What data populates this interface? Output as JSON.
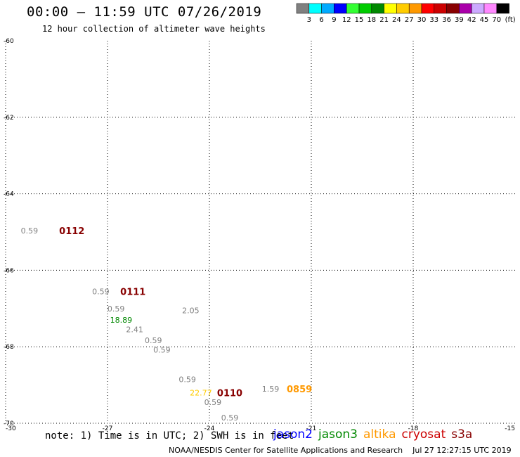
{
  "header": {
    "title": "00:00 – 11:59 UTC 07/26/2019",
    "subtitle": "12 hour collection of altimeter wave heights"
  },
  "colorbar": {
    "bins": [
      {
        "label": "3",
        "color": "#808080"
      },
      {
        "label": "6",
        "color": "#00ffff"
      },
      {
        "label": "9",
        "color": "#00aaff"
      },
      {
        "label": "12",
        "color": "#0000ff"
      },
      {
        "label": "15",
        "color": "#33ff33"
      },
      {
        "label": "18",
        "color": "#00cc00"
      },
      {
        "label": "21",
        "color": "#008800"
      },
      {
        "label": "24",
        "color": "#ffff00"
      },
      {
        "label": "27",
        "color": "#ffcc00"
      },
      {
        "label": "30",
        "color": "#ff9900"
      },
      {
        "label": "33",
        "color": "#ff0000"
      },
      {
        "label": "36",
        "color": "#cc0000"
      },
      {
        "label": "39",
        "color": "#880000"
      },
      {
        "label": "42",
        "color": "#aa00aa"
      },
      {
        "label": "45",
        "color": "#ccaaff"
      },
      {
        "label": "70",
        "color": "#ff88ff"
      },
      {
        "label": "",
        "color": "#000000"
      }
    ],
    "unit": "(ft)"
  },
  "chart_data": {
    "type": "scatter",
    "title": "00:00 – 11:59 UTC 07/26/2019",
    "subtitle": "12 hour collection of altimeter wave heights",
    "xlabel": "",
    "ylabel": "",
    "xlim": [
      -30,
      -15
    ],
    "ylim": [
      -70,
      -60
    ],
    "x_ticks": [
      "-30",
      "-27",
      "-24",
      "-21",
      "-18",
      "-15"
    ],
    "y_ticks": [
      "-60",
      "-62",
      "-64",
      "-66",
      "-68",
      "-70"
    ],
    "grid": true,
    "wave_heights": [
      {
        "x": -29.3,
        "y": -64.96,
        "label": "0.59",
        "color": "#808080"
      },
      {
        "x": -27.2,
        "y": -66.55,
        "label": "0.59",
        "color": "#808080"
      },
      {
        "x": -26.75,
        "y": -67.0,
        "label": "0.59",
        "color": "#808080"
      },
      {
        "x": -26.6,
        "y": -67.3,
        "label": "18.89",
        "color": "#008800"
      },
      {
        "x": -26.2,
        "y": -67.55,
        "label": "2.41",
        "color": "#808080"
      },
      {
        "x": -25.65,
        "y": -67.83,
        "label": "0.59",
        "color": "#808080"
      },
      {
        "x": -25.4,
        "y": -68.08,
        "label": "0.59",
        "color": "#808080"
      },
      {
        "x": -24.55,
        "y": -67.05,
        "label": "2.05",
        "color": "#808080"
      },
      {
        "x": -24.65,
        "y": -68.85,
        "label": "0.59",
        "color": "#808080"
      },
      {
        "x": -24.25,
        "y": -69.2,
        "label": "22.77",
        "color": "#ffcc00"
      },
      {
        "x": -23.9,
        "y": -69.45,
        "label": "0.59",
        "color": "#808080"
      },
      {
        "x": -23.4,
        "y": -69.85,
        "label": "0.59",
        "color": "#808080"
      },
      {
        "x": -22.2,
        "y": -69.1,
        "label": "1.59",
        "color": "#808080"
      }
    ],
    "time_labels": [
      {
        "x": -28.05,
        "y": -64.96,
        "label": "0112",
        "color": "#880000"
      },
      {
        "x": -26.25,
        "y": -66.55,
        "label": "0111",
        "color": "#880000"
      },
      {
        "x": -23.4,
        "y": -69.2,
        "label": "0110",
        "color": "#880000"
      },
      {
        "x": -21.35,
        "y": -69.1,
        "label": "0859",
        "color": "#ff9900"
      }
    ]
  },
  "footer": {
    "note": "note: 1) Time is in UTC; 2) SWH is in feet",
    "satellites": [
      {
        "name": "jason2",
        "color": "#0000ff"
      },
      {
        "name": "jason3",
        "color": "#008800"
      },
      {
        "name": "altika",
        "color": "#ff9900"
      },
      {
        "name": "cryosat",
        "color": "#cc0000"
      },
      {
        "name": "s3a",
        "color": "#880000"
      }
    ],
    "credit": "NOAA/NESDIS Center for Satellite Applications and Research    Jul 27 12:27:15 UTC 2019"
  }
}
